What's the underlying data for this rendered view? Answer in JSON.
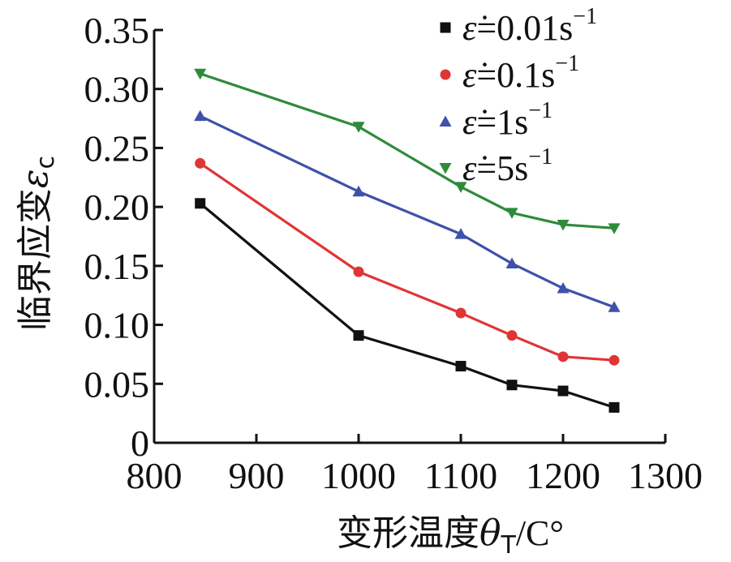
{
  "chart_data": {
    "type": "line",
    "xlabel": {
      "main": "变形温度",
      "symbol": "θ",
      "subscript": "T",
      "unit": "/C°"
    },
    "ylabel": {
      "main": "临界应变",
      "symbol": "ε",
      "subscript": "c"
    },
    "xlim": [
      800,
      1300
    ],
    "ylim": [
      0,
      0.35
    ],
    "x_ticks": [
      "800",
      "900",
      "1000",
      "1100",
      "1200",
      "1300"
    ],
    "y_ticks": [
      "0",
      "0.05",
      "0.10",
      "0.15",
      "0.20",
      "0.25",
      "0.30",
      "0.35"
    ],
    "grid": false,
    "legend_position": "top-right",
    "x": [
      845,
      1000,
      1100,
      1150,
      1200,
      1250
    ],
    "series": [
      {
        "name": "ε̇=0.01s⁻¹",
        "legend": {
          "symbol": "ε̇",
          "eq": "=0.01s",
          "sup": "−1"
        },
        "color": "#111111",
        "marker": "square",
        "values": [
          0.203,
          0.091,
          0.065,
          0.049,
          0.044,
          0.03
        ]
      },
      {
        "name": "ε̇=0.1s⁻¹",
        "legend": {
          "symbol": "ε̇",
          "eq": "=0.1s",
          "sup": "−1"
        },
        "color": "#e03535",
        "marker": "circle",
        "values": [
          0.237,
          0.145,
          0.11,
          0.091,
          0.073,
          0.07
        ]
      },
      {
        "name": "ε̇=1s⁻¹",
        "legend": {
          "symbol": "ε̇",
          "eq": "=1s",
          "sup": "−1"
        },
        "color": "#3f51a8",
        "marker": "triangle-up",
        "values": [
          0.277,
          0.213,
          0.177,
          0.152,
          0.131,
          0.115
        ]
      },
      {
        "name": "ε̇=5s⁻¹",
        "legend": {
          "symbol": "ε̇",
          "eq": "=5s",
          "sup": "−1"
        },
        "color": "#2e8b3a",
        "marker": "triangle-down",
        "values": [
          0.313,
          0.268,
          0.217,
          0.195,
          0.185,
          0.182
        ]
      }
    ]
  }
}
